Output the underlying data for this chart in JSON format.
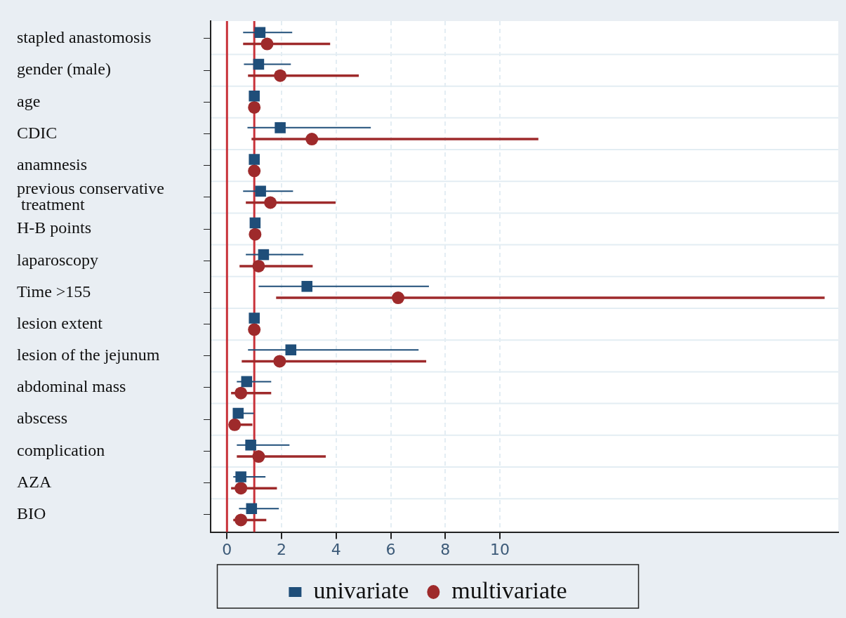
{
  "chart_data": {
    "type": "scatter",
    "orientation": "horizontal",
    "categories": [
      "stapled anastomosis",
      "gender (male)",
      "age",
      "CDIC",
      "anamnesis",
      "previous conservative treatment",
      "H-B points",
      "laparoscopy",
      "Time >155",
      "lesion extent",
      "lesion of the jejunum",
      "abdominal mass",
      "abscess",
      "complication",
      "AZA",
      "BIO"
    ],
    "series": [
      {
        "name": "univariate",
        "color": "#1f4e79",
        "marker": "square",
        "values": [
          1.21,
          1.16,
          1.0,
          1.95,
          1.0,
          1.23,
          1.03,
          1.34,
          2.93,
          1.0,
          2.34,
          0.72,
          0.41,
          0.87,
          0.51,
          0.9
        ],
        "errors": [
          [
            0.59,
            2.39
          ],
          [
            0.62,
            2.34
          ],
          null,
          [
            0.75,
            5.27
          ],
          null,
          [
            0.59,
            2.42
          ],
          null,
          [
            0.69,
            2.8
          ],
          [
            1.16,
            7.4
          ],
          null,
          [
            0.77,
            7.02
          ],
          [
            0.36,
            1.62
          ],
          [
            0.25,
            0.98
          ],
          [
            0.36,
            2.29
          ],
          [
            0.23,
            1.41
          ],
          [
            0.44,
            1.9
          ]
        ]
      },
      {
        "name": "multivariate",
        "color": "#9e2a2b",
        "marker": "circle",
        "values": [
          1.47,
          1.95,
          1.0,
          3.11,
          1.0,
          1.59,
          1.03,
          1.16,
          6.27,
          1.0,
          1.93,
          0.51,
          0.28,
          1.16,
          0.51,
          0.51
        ],
        "errors": [
          [
            0.59,
            3.78
          ],
          [
            0.77,
            4.83
          ],
          null,
          [
            0.9,
            11.41
          ],
          null,
          [
            0.69,
            3.98
          ],
          null,
          [
            0.46,
            3.14
          ],
          [
            1.8,
            21.9
          ],
          null,
          [
            0.54,
            7.3
          ],
          [
            0.15,
            1.62
          ],
          [
            0.1,
            0.93
          ],
          [
            0.36,
            3.62
          ],
          [
            0.15,
            1.83
          ],
          [
            0.23,
            1.44
          ]
        ]
      }
    ],
    "xlim": [
      -0.6,
      22.4
    ],
    "xticks": [
      0,
      2,
      4,
      6,
      8,
      10
    ],
    "ref_lines": [
      {
        "axis": "x",
        "value": 0,
        "color": "#c8323a"
      },
      {
        "axis": "x",
        "value": 1,
        "color": "#c8323a"
      }
    ],
    "grid": true,
    "legend": "bottom"
  }
}
